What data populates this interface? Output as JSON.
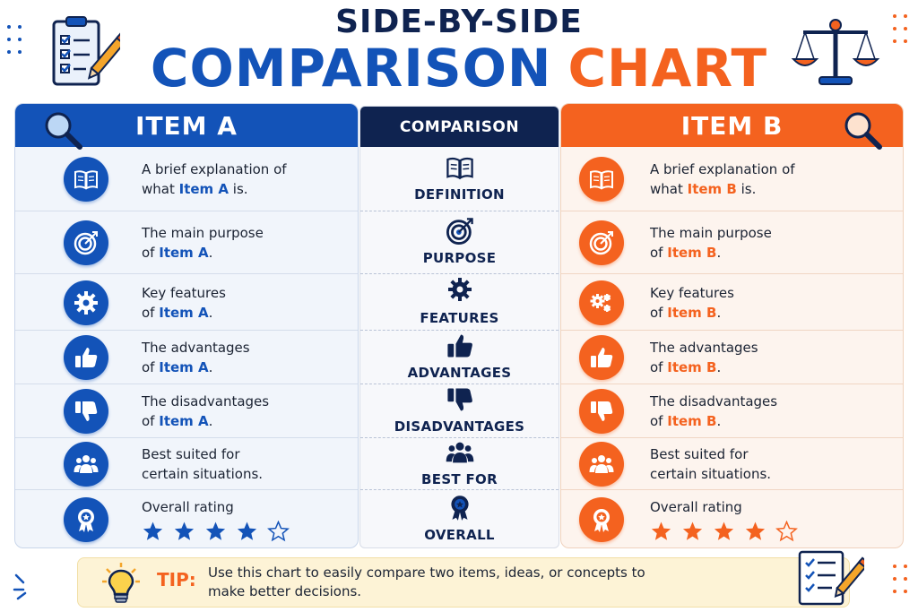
{
  "title": {
    "line1": "SIDE-BY-SIDE",
    "line2a": "COMPARISON",
    "line2b": "CHART"
  },
  "colors": {
    "item_a": "#1353b8",
    "item_b": "#f4621f",
    "navy": "#0f2350",
    "tip_bg": "#fdf3d6"
  },
  "headers": {
    "item_a": "ITEM A",
    "comparison": "COMPARISON",
    "item_b": "ITEM B"
  },
  "criteria": [
    {
      "label": "DEFINITION",
      "icon": "book-icon"
    },
    {
      "label": "PURPOSE",
      "icon": "target-icon"
    },
    {
      "label": "FEATURES",
      "icon": "gear-icon"
    },
    {
      "label": "ADVANTAGES",
      "icon": "thumbs-up-icon"
    },
    {
      "label": "DISADVANTAGES",
      "icon": "thumbs-down-icon"
    },
    {
      "label": "BEST FOR",
      "icon": "people-icon"
    },
    {
      "label": "OVERALL",
      "icon": "award-icon"
    }
  ],
  "item_a": {
    "rows": [
      {
        "pre": "A brief explanation of",
        "pre2": "what ",
        "hl": "Item A",
        "post": " is."
      },
      {
        "pre": "The main purpose",
        "pre2": "of ",
        "hl": "Item A",
        "post": "."
      },
      {
        "pre": "Key features",
        "pre2": "of ",
        "hl": "Item A",
        "post": "."
      },
      {
        "pre": "The advantages",
        "pre2": "of ",
        "hl": "Item A",
        "post": "."
      },
      {
        "pre": "The disadvantages",
        "pre2": "of ",
        "hl": "Item A",
        "post": "."
      },
      {
        "line1": "Best suited for",
        "line2": "certain situations."
      },
      {
        "line1": "Overall rating"
      }
    ],
    "rating": 4,
    "rating_max": 5
  },
  "item_b": {
    "rows": [
      {
        "pre": "A brief explanation of",
        "pre2": "what ",
        "hl": "Item B",
        "post": " is."
      },
      {
        "pre": "The main purpose",
        "pre2": "of ",
        "hl": "Item B",
        "post": "."
      },
      {
        "pre": "Key features",
        "pre2": "of ",
        "hl": "Item B",
        "post": "."
      },
      {
        "pre": "The advantages",
        "pre2": "of ",
        "hl": "Item B",
        "post": "."
      },
      {
        "pre": "The disadvantages",
        "pre2": "of ",
        "hl": "Item B",
        "post": "."
      },
      {
        "line1": "Best suited for",
        "line2": "certain situations."
      },
      {
        "line1": "Overall rating"
      }
    ],
    "rating": 4,
    "rating_max": 5
  },
  "tip": {
    "label": "TIP:",
    "text": "Use this chart to easily compare two items, ideas, or concepts to make better decisions."
  }
}
